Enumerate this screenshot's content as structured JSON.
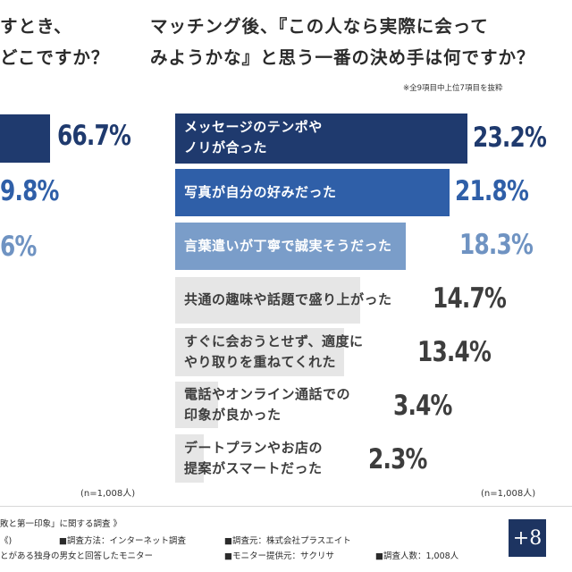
{
  "left_panel": {
    "title_line1": "すとき、",
    "title_line2": "どこですか？",
    "n_label": "(n=1,008人)",
    "values": [
      "66.7%",
      "9.8%",
      "6%"
    ]
  },
  "chart_data": {
    "type": "bar",
    "orientation": "horizontal",
    "title": "マッチング後、『この人なら実際に会ってみようかな』と思う一番の決め手は何ですか？",
    "title_line1": "マッチング後、『この人なら実際に会って",
    "title_line2": "みようかな』と思う一番の決め手は何ですか？",
    "note": "※全9項目中上位7項目を抜粋",
    "n_label": "(n=1,008人)",
    "categories": [
      "メッセージのテンポやノリが合った",
      "写真が自分の好みだった",
      "言葉遣いが丁寧で誠実そうだった",
      "共通の趣味や話題で盛り上がった",
      "すぐに会おうとせず、適度にやり取りを重ねてくれた",
      "電話やオンライン通話での印象が良かった",
      "デートプランやお店の提案がスマートだった"
    ],
    "label_lines": [
      [
        "メッセージのテンポや",
        "ノリが合った"
      ],
      [
        "写真が自分の好みだった"
      ],
      [
        "言葉遣いが丁寧で誠実そうだった"
      ],
      [
        "共通の趣味や話題で盛り上がった"
      ],
      [
        "すぐに会おうとせず、適度に",
        "やり取りを重ねてくれた"
      ],
      [
        "電話やオンライン通話での",
        "印象が良かった"
      ],
      [
        "デートプランやお店の",
        "提案がスマートだった"
      ]
    ],
    "values": [
      23.2,
      21.8,
      18.3,
      14.7,
      13.4,
      3.4,
      2.3
    ],
    "value_labels": [
      "23.2%",
      "21.8%",
      "18.3%",
      "14.7%",
      "13.4%",
      "3.4%",
      "2.3%"
    ],
    "xlim": [
      0,
      23.2
    ],
    "legend": "none",
    "grid": false
  },
  "colors": {
    "navy": "#1f3a6e",
    "blue": "#2f5fa8",
    "lightblue": "#7a9dc9",
    "gray_bar": "#e6e6e6",
    "gray_text": "#3d3d3d",
    "pct_navy": "#1f3a6e",
    "pct_blue": "#2f5fa8",
    "pct_light": "#6f93c2",
    "logo": "#1d3461"
  },
  "footer": {
    "survey_name": "敗と第一印象」に関する調査 》",
    "line2_a": "《)",
    "line2_b": "■調査方法：インターネット調査",
    "line2_c": "■調査元：株式会社プラスエイト",
    "line3_a": "とがある独身の男女と回答したモニター",
    "line3_b": "■モニター提供元：サクリサ",
    "line3_c": "■調査人数：1,008人",
    "logo_text": "+8"
  }
}
